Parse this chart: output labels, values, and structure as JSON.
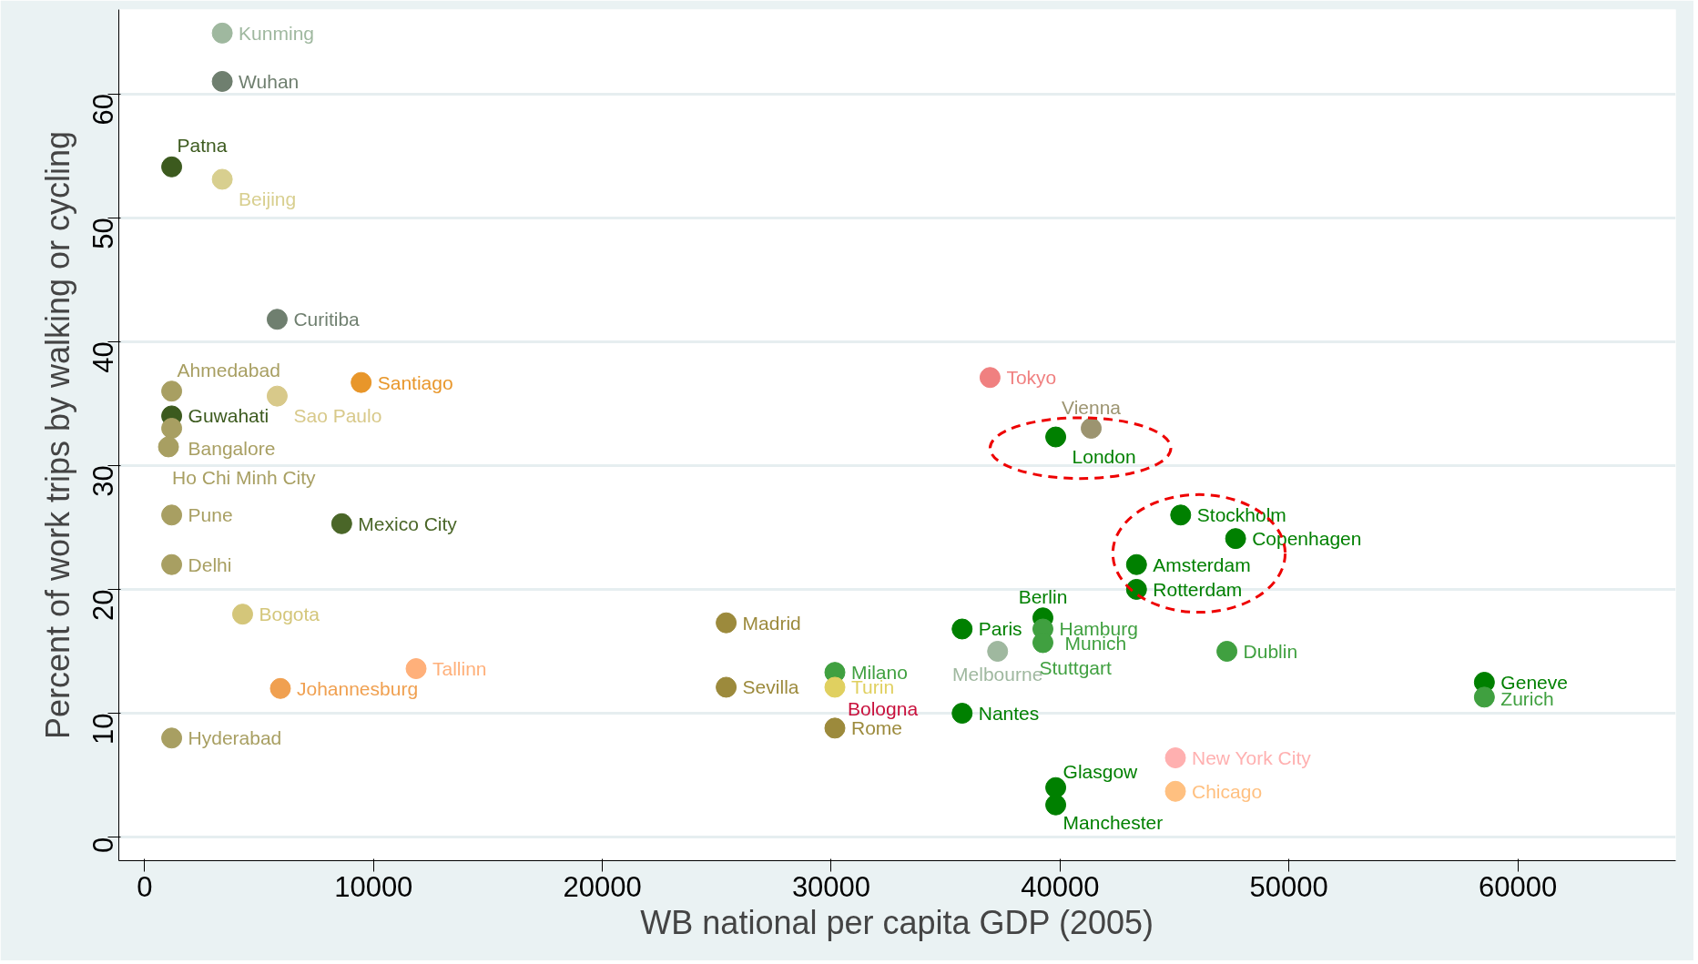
{
  "chart_data": {
    "type": "scatter",
    "xlabel": "WB national per capita GDP (2005)",
    "ylabel": "Percent of work trips by walking or cycling",
    "xlim": [
      -1130,
      66900
    ],
    "ylim": [
      -1.9,
      66.8
    ],
    "xticks": [
      0,
      10000,
      20000,
      30000,
      40000,
      50000,
      60000
    ],
    "yticks": [
      0,
      10,
      20,
      30,
      40,
      50,
      60
    ],
    "grid": "y",
    "marker": "circle",
    "series": [
      {
        "name": "Kunming",
        "color": "#9fb89f",
        "x": [
          3390
        ],
        "values": [
          64.9
        ]
      },
      {
        "name": "Wuhan",
        "color": "#6f7f6f",
        "x": [
          3390
        ],
        "values": [
          61.0
        ]
      },
      {
        "name": "Patna",
        "color": "#3c5a1e",
        "x": [
          1180
        ],
        "values": [
          54.1
        ]
      },
      {
        "name": "Beijing",
        "color": "#d8cf8f",
        "x": [
          3390
        ],
        "values": [
          53.1
        ]
      },
      {
        "name": "Curitiba",
        "color": "#6f7f6f",
        "x": [
          5790
        ],
        "values": [
          41.8
        ]
      },
      {
        "name": "Ahmedabad",
        "color": "#a89f62",
        "x": [
          1180
        ],
        "values": [
          36.0
        ]
      },
      {
        "name": "Santiago",
        "color": "#e8962a",
        "x": [
          9460
        ],
        "values": [
          36.7
        ]
      },
      {
        "name": "Sao Paulo",
        "color": "#d8c98a",
        "x": [
          5790
        ],
        "values": [
          35.6
        ]
      },
      {
        "name": "Guwahati",
        "color": "#3c5a1e",
        "x": [
          1180
        ],
        "values": [
          34.0
        ]
      },
      {
        "name": "Bangalore",
        "color": "#a89f62",
        "x": [
          1180
        ],
        "values": [
          33.0
        ]
      },
      {
        "name": "Ho Chi Minh City",
        "color": "#a89f62",
        "x": [
          1040
        ],
        "values": [
          31.5
        ]
      },
      {
        "name": "Pune",
        "color": "#a89f62",
        "x": [
          1180
        ],
        "values": [
          26.0
        ]
      },
      {
        "name": "Mexico City",
        "color": "#4a6628",
        "x": [
          8610
        ],
        "values": [
          25.3
        ]
      },
      {
        "name": "Delhi",
        "color": "#a89f62",
        "x": [
          1180
        ],
        "values": [
          22.0
        ]
      },
      {
        "name": "Bogota",
        "color": "#d4c67a",
        "x": [
          4280
        ],
        "values": [
          18.0
        ]
      },
      {
        "name": "Tallinn",
        "color": "#ffb07a",
        "x": [
          11860
        ],
        "values": [
          13.6
        ]
      },
      {
        "name": "Johannesburg",
        "color": "#f0a050",
        "x": [
          5930
        ],
        "values": [
          12.0
        ]
      },
      {
        "name": "Hyderabad",
        "color": "#a89f62",
        "x": [
          1180
        ],
        "values": [
          8.0
        ]
      },
      {
        "name": "Madrid",
        "color": "#9c8a3c",
        "x": [
          25410
        ],
        "values": [
          17.3
        ]
      },
      {
        "name": "Sevilla",
        "color": "#9c8a3c",
        "x": [
          25410
        ],
        "values": [
          12.1
        ]
      },
      {
        "name": "Milano",
        "color": "#40a040",
        "x": [
          30160
        ],
        "values": [
          13.3
        ]
      },
      {
        "name": "Bologna",
        "color": "#c8103c",
        "x": [
          null
        ],
        "values": [
          null
        ]
      },
      {
        "name": "Turin",
        "color": "#e0d060",
        "x": [
          30160
        ],
        "values": [
          12.1
        ]
      },
      {
        "name": "Rome",
        "color": "#9c8a3c",
        "x": [
          30160
        ],
        "values": [
          8.8
        ]
      },
      {
        "name": "Tokyo",
        "color": "#f08080",
        "x": [
          36940
        ],
        "values": [
          37.1
        ]
      },
      {
        "name": "Vienna",
        "color": "#9c9470",
        "x": [
          41360
        ],
        "values": [
          33.0
        ]
      },
      {
        "name": "London",
        "color": "#008000",
        "x": [
          39810
        ],
        "values": [
          32.3
        ]
      },
      {
        "name": "Stockholm",
        "color": "#008000",
        "x": [
          45270
        ],
        "values": [
          26.0
        ]
      },
      {
        "name": "Copenhagen",
        "color": "#008000",
        "x": [
          47670
        ],
        "values": [
          24.1
        ]
      },
      {
        "name": "Amsterdam",
        "color": "#008000",
        "x": [
          43340
        ],
        "values": [
          22.0
        ]
      },
      {
        "name": "Rotterdam",
        "color": "#008000",
        "x": [
          43340
        ],
        "values": [
          20.0
        ]
      },
      {
        "name": "Berlin",
        "color": "#008000",
        "x": [
          39250
        ],
        "values": [
          17.7
        ]
      },
      {
        "name": "Hamburg",
        "color": "#40a040",
        "x": [
          39250
        ],
        "values": [
          16.8
        ]
      },
      {
        "name": "Stuttgart",
        "color": "#40a040",
        "x": [
          null
        ],
        "values": [
          null
        ]
      },
      {
        "name": "Munich",
        "color": "#40a040",
        "x": [
          39250
        ],
        "values": [
          15.7
        ]
      },
      {
        "name": "Paris",
        "color": "#008000",
        "x": [
          35720
        ],
        "values": [
          16.8
        ]
      },
      {
        "name": "Melbourne",
        "color": "#9fb89f",
        "x": [
          37270
        ],
        "values": [
          15.0
        ]
      },
      {
        "name": "Dublin",
        "color": "#40a040",
        "x": [
          47290
        ],
        "values": [
          15.0
        ]
      },
      {
        "name": "Nantes",
        "color": "#008000",
        "x": [
          35720
        ],
        "values": [
          10.0
        ]
      },
      {
        "name": "Geneve",
        "color": "#008000",
        "x": [
          58540
        ],
        "values": [
          12.5
        ]
      },
      {
        "name": "Zurich",
        "color": "#40a040",
        "x": [
          58540
        ],
        "values": [
          11.3
        ]
      },
      {
        "name": "New York City",
        "color": "#ffb0b0",
        "x": [
          45040
        ],
        "values": [
          6.4
        ]
      },
      {
        "name": "Chicago",
        "color": "#ffc080",
        "x": [
          45040
        ],
        "values": [
          3.7
        ]
      },
      {
        "name": "Glasgow",
        "color": "#008000",
        "x": [
          39810
        ],
        "values": [
          4.0
        ]
      },
      {
        "name": "Manchester",
        "color": "#008000",
        "x": [
          39810
        ],
        "values": [
          2.6
        ]
      }
    ]
  }
}
